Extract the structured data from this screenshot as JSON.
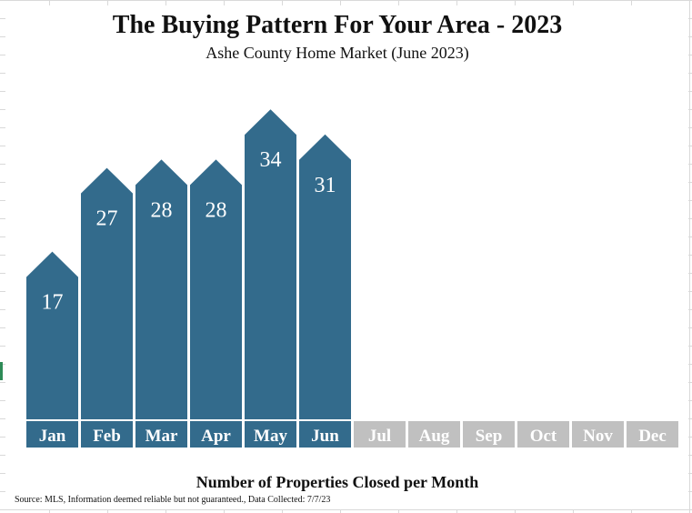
{
  "chart_data": {
    "type": "bar",
    "title": "The Buying Pattern For Your Area - 2023",
    "subtitle": "Ashe County Home Market (June 2023)",
    "xlabel": "Number of Properties Closed per Month",
    "ylabel": "",
    "categories": [
      "Jan",
      "Feb",
      "Mar",
      "Apr",
      "May",
      "Jun",
      "Jul",
      "Aug",
      "Sep",
      "Oct",
      "Nov",
      "Dec"
    ],
    "values": [
      17,
      27,
      28,
      28,
      34,
      31,
      null,
      null,
      null,
      null,
      null,
      null
    ],
    "ylim": [
      0,
      38
    ],
    "grid": false,
    "legend": "none",
    "colors": {
      "bar": "#336b8c",
      "active_label_bg": "#336b8c",
      "inactive_label_bg": "#c0c0c0",
      "label_text": "#ffffff"
    }
  },
  "footer": {
    "source": "Source: MLS, Information deemed reliable but not guaranteed., Data Collected: 7/7/23"
  }
}
